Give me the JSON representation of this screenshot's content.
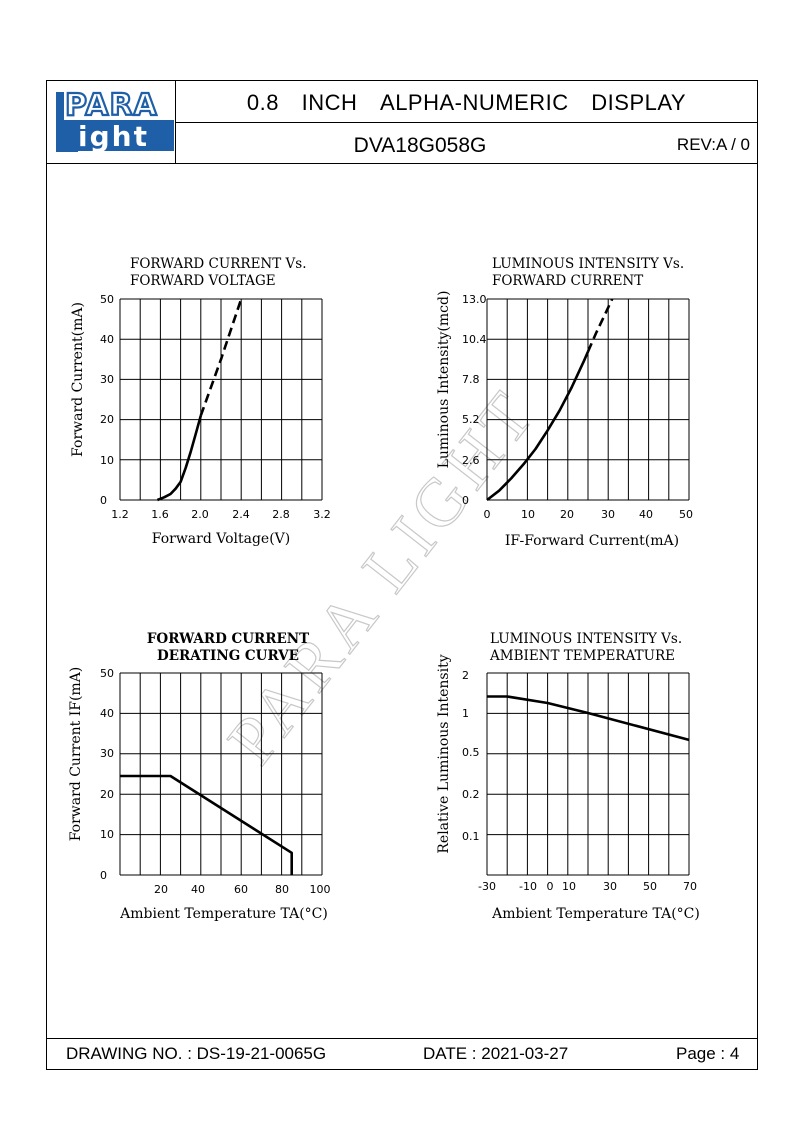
{
  "header": {
    "logo_top": "PARA",
    "logo_bottom": "ight",
    "logo_letter": "L",
    "title_words": [
      "0.8",
      "INCH",
      "ALPHA-NUMERIC",
      "DISPLAY"
    ],
    "model": "DVA18G058G",
    "rev": "REV:A / 0"
  },
  "watermark": "PARA LIGHT",
  "footer": {
    "drawing_no": "DRAWING NO. : DS-19-21-0065G",
    "date": "DATE : 2021-03-27",
    "page": "Page : 4"
  },
  "colors": {
    "line": "#000000",
    "logo_blue": "#1f5fa8"
  },
  "chart_data": [
    {
      "type": "line",
      "title": [
        "FORWARD  CURRENT  Vs.",
        "FORWARD  VOLTAGE"
      ],
      "xlabel": "Forward  Voltage(V)",
      "ylabel": "Forward  Current(mA)",
      "xlim": [
        1.2,
        3.2
      ],
      "ylim": [
        0,
        50
      ],
      "x_ticks": [
        "1.2",
        "1.6",
        "2.0",
        "2.4",
        "2.8",
        "3.2"
      ],
      "y_ticks": [
        "0",
        "10",
        "20",
        "30",
        "40",
        "50"
      ],
      "grid": true,
      "series": [
        {
          "style": "solid",
          "x": [
            1.57,
            1.64,
            1.7,
            1.75,
            1.8,
            1.85,
            1.9,
            1.95,
            2.0
          ],
          "y": [
            0,
            0.7,
            1.5,
            2.8,
            4.5,
            8,
            12,
            16.5,
            21
          ]
        },
        {
          "style": "dashed",
          "x": [
            2.0,
            2.1,
            2.2,
            2.3,
            2.4
          ],
          "y": [
            21,
            28,
            35,
            42.5,
            50
          ]
        }
      ]
    },
    {
      "type": "line",
      "title": [
        "LUMINOUS  INTENSITY  Vs.",
        "FORWARD  CURRENT"
      ],
      "xlabel": "IF-Forward  Current(mA)",
      "ylabel": "Luminous  Intensity(mcd)",
      "xlim": [
        0,
        50
      ],
      "ylim": [
        0,
        13.0
      ],
      "x_ticks": [
        "0",
        "10",
        "20",
        "30",
        "40",
        "50"
      ],
      "y_ticks": [
        "0",
        "2.6",
        "5.2",
        "7.8",
        "10.4",
        "13.0"
      ],
      "grid": true,
      "series": [
        {
          "style": "solid",
          "x": [
            0,
            3,
            6,
            9,
            12,
            15,
            18,
            21,
            24,
            25
          ],
          "y": [
            0,
            0.6,
            1.4,
            2.3,
            3.3,
            4.5,
            5.8,
            7.3,
            9.0,
            9.6
          ]
        },
        {
          "style": "dashed",
          "x": [
            25,
            27,
            29,
            31
          ],
          "y": [
            9.6,
            10.8,
            11.9,
            13.0
          ]
        }
      ]
    },
    {
      "type": "line",
      "title": [
        "FORWARD  CURRENT",
        "DERATING  CURVE"
      ],
      "xlabel": "Ambient  Temperature  TA(°C)",
      "ylabel": "Forward  Current  IF(mA)",
      "xlim": [
        0,
        100
      ],
      "ylim": [
        0,
        50
      ],
      "x_ticks": [
        "20",
        "40",
        "60",
        "80",
        "100"
      ],
      "y_ticks": [
        "0",
        "10",
        "20",
        "30",
        "40",
        "50"
      ],
      "grid": true,
      "series": [
        {
          "style": "solid",
          "x": [
            0,
            25,
            85,
            85
          ],
          "y": [
            24.5,
            24.5,
            5.5,
            0
          ]
        }
      ]
    },
    {
      "type": "line",
      "title": [
        "LUMINOUS  INTENSITY  Vs.",
        "AMBIENT  TEMPERATURE"
      ],
      "xlabel": "Ambient  Temperature  TA(°C)",
      "ylabel": "Relative  Luminous  Intensity",
      "x_ticks": [
        "-30",
        "-10",
        "0",
        "10",
        "30",
        "50",
        "70"
      ],
      "y_ticks": [
        "0.1",
        "0.2",
        "0.5",
        "1",
        "2"
      ],
      "grid": true,
      "series": [
        {
          "style": "solid",
          "x": [
            -30,
            -20,
            0,
            20,
            70
          ],
          "y": [
            1.35,
            1.35,
            1.2,
            1.0,
            0.62
          ]
        }
      ]
    }
  ]
}
